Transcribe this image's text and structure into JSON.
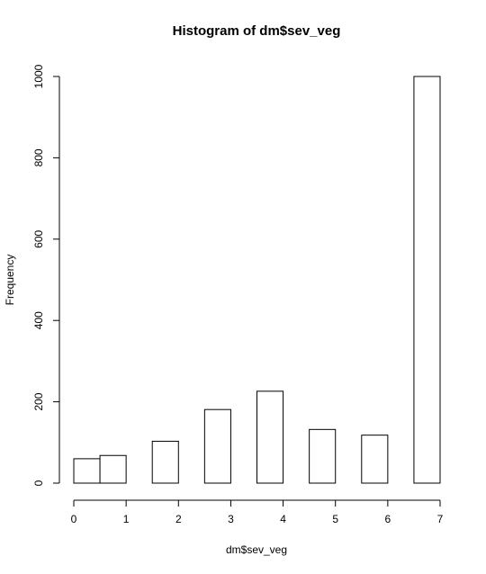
{
  "chart_data": {
    "type": "histogram",
    "title": "Histogram of dm$sev_veg",
    "x_label": "dm$sev_veg",
    "y_label": "Frequency",
    "bins": [
      0,
      0.5,
      1,
      1.5,
      2,
      2.5,
      3,
      3.5,
      4,
      4.5,
      5,
      5.5,
      6,
      6.5,
      7
    ],
    "values": [
      60,
      68,
      0,
      103,
      0,
      181,
      0,
      226,
      0,
      132,
      0,
      118,
      0,
      1000
    ],
    "color": "#ffffff",
    "edge_color": "#000000",
    "xlim": [
      0,
      7
    ],
    "xticks": [
      0,
      1,
      2,
      3,
      4,
      5,
      6,
      7
    ],
    "ylim": [
      0,
      1000
    ],
    "yticks": [
      0,
      200,
      400,
      600,
      800,
      1000
    ]
  }
}
